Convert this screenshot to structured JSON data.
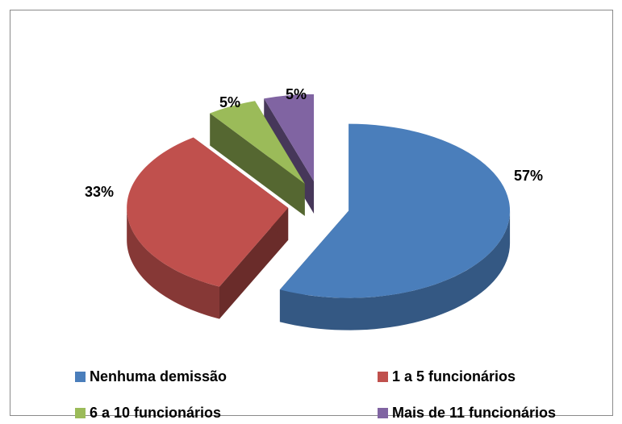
{
  "chart_data": {
    "type": "pie",
    "categories": [
      "Nenhuma demissão",
      "1 a 5 funcionários",
      "6 a 10 funcionários",
      "Mais de 11 funcionários"
    ],
    "values": [
      57,
      33,
      5,
      5
    ],
    "value_labels": [
      "57%",
      "33%",
      "5%",
      "5%"
    ],
    "colors": [
      "#4a7ebb",
      "#c0504d",
      "#9bbb59",
      "#8064a2"
    ],
    "legend": "bottom"
  }
}
